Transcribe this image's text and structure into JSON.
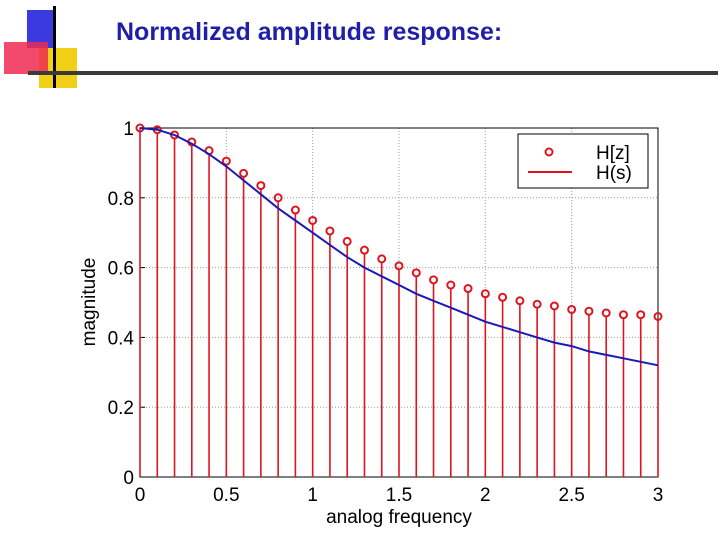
{
  "slide": {
    "title": "Normalized amplitude response:"
  },
  "colors": {
    "title": "#1f1fa8",
    "stem": "#e0141e",
    "line": "#1a1ab4",
    "deco_blue": "#3a3ae0",
    "deco_yellow": "#f2d018",
    "deco_red": "#f02a50",
    "deco_line": "#000000"
  },
  "chart_data": {
    "type": "line",
    "title": "",
    "xlabel": "analog frequency",
    "ylabel": "magnitude",
    "xlim": [
      0,
      3
    ],
    "ylim": [
      0,
      1
    ],
    "xticks": [
      "0",
      "0.5",
      "1",
      "1.5",
      "2",
      "2.5",
      "3"
    ],
    "xtick_values": [
      0,
      0.5,
      1,
      1.5,
      2,
      2.5,
      3
    ],
    "yticks": [
      "0",
      "0.2",
      "0.4",
      "0.6",
      "0.8",
      "1"
    ],
    "ytick_values": [
      0,
      0.2,
      0.4,
      0.6,
      0.8,
      1
    ],
    "grid": true,
    "legend_position": "top-right",
    "series": [
      {
        "name": "H[z]",
        "kind": "stem",
        "x": [
          0,
          0.1,
          0.2,
          0.3,
          0.4,
          0.5,
          0.6,
          0.7,
          0.8,
          0.9,
          1.0,
          1.1,
          1.2,
          1.3,
          1.4,
          1.5,
          1.6,
          1.7,
          1.8,
          1.9,
          2.0,
          2.1,
          2.2,
          2.3,
          2.4,
          2.5,
          2.6,
          2.7,
          2.8,
          2.9,
          3.0
        ],
        "values": [
          1.0,
          0.995,
          0.98,
          0.96,
          0.935,
          0.905,
          0.87,
          0.835,
          0.8,
          0.765,
          0.735,
          0.705,
          0.675,
          0.65,
          0.625,
          0.605,
          0.585,
          0.565,
          0.55,
          0.54,
          0.525,
          0.515,
          0.505,
          0.495,
          0.49,
          0.48,
          0.475,
          0.47,
          0.465,
          0.465,
          0.46
        ]
      },
      {
        "name": "H(s)",
        "kind": "line",
        "x": [
          0,
          0.1,
          0.2,
          0.3,
          0.4,
          0.5,
          0.6,
          0.7,
          0.8,
          0.9,
          1.0,
          1.1,
          1.2,
          1.3,
          1.4,
          1.5,
          1.6,
          1.7,
          1.8,
          1.9,
          2.0,
          2.1,
          2.2,
          2.3,
          2.4,
          2.5,
          2.6,
          2.7,
          2.8,
          2.9,
          3.0
        ],
        "values": [
          1.0,
          0.995,
          0.98,
          0.955,
          0.925,
          0.89,
          0.85,
          0.81,
          0.77,
          0.735,
          0.7,
          0.665,
          0.63,
          0.6,
          0.575,
          0.55,
          0.525,
          0.505,
          0.485,
          0.465,
          0.445,
          0.43,
          0.415,
          0.4,
          0.385,
          0.375,
          0.36,
          0.35,
          0.34,
          0.33,
          0.32
        ]
      }
    ]
  }
}
